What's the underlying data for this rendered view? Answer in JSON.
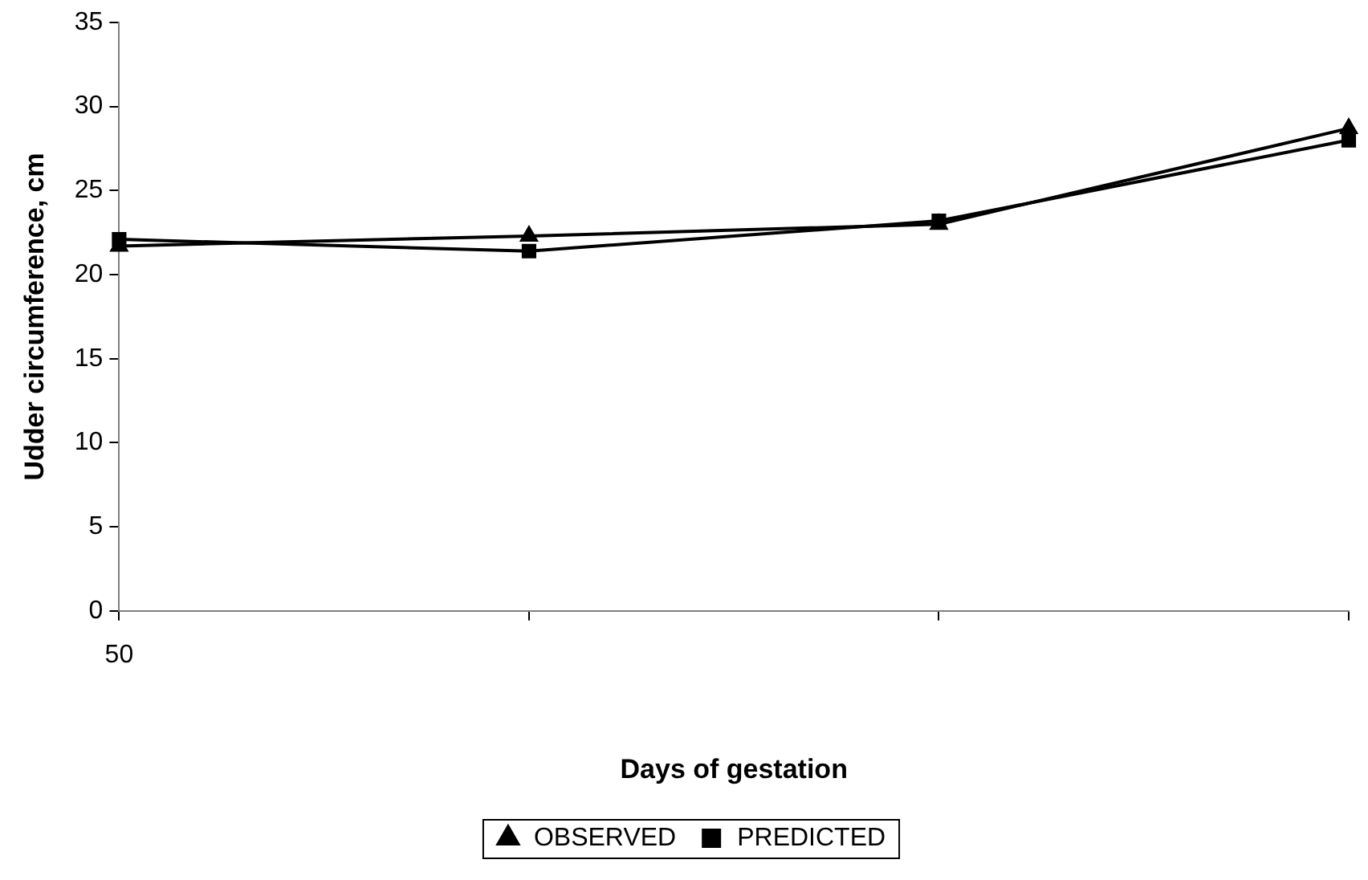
{
  "chart_data": {
    "type": "line",
    "xlabel": "Days of gestation",
    "ylabel": "Udder circumference, cm",
    "categories": [
      "50",
      null,
      null,
      null
    ],
    "series": [
      {
        "name": "OBSERVED",
        "color": "#000000",
        "marker": "triangle",
        "values": [
          21.7,
          22.3,
          23.0,
          28.7
        ]
      },
      {
        "name": "PREDICTED",
        "color": "#000000",
        "marker": "square",
        "values": [
          22.1,
          21.4,
          23.2,
          28.0
        ]
      }
    ],
    "ylim": [
      0,
      35
    ],
    "yticks": [
      0,
      5,
      10,
      15,
      20,
      25,
      30,
      35
    ],
    "grid": false,
    "legend": "bottom",
    "line_style": "solid"
  }
}
